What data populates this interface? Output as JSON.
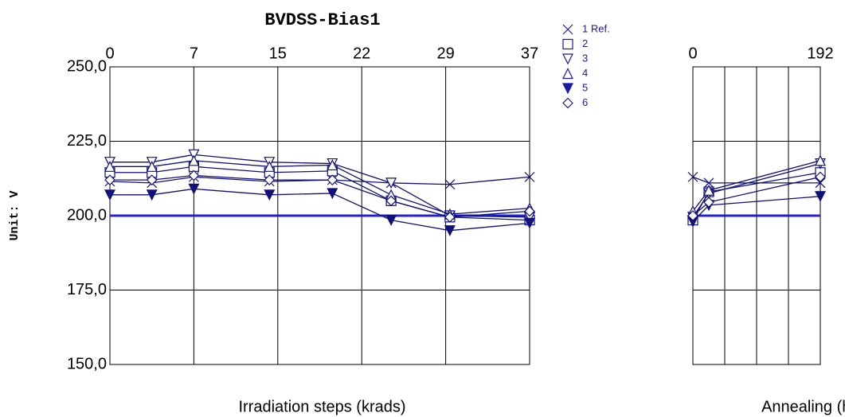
{
  "chart_data": [
    {
      "type": "line",
      "title": "BVDSS-Bias1",
      "y_label": "Unit: V",
      "x_label": "Irradiation steps   (krads)",
      "x": [
        0,
        0.5,
        1,
        1.9,
        2.65,
        3.35,
        4.05,
        5
      ],
      "xlim": [
        0,
        5
      ],
      "xticks": [
        0,
        {
          "value": 1,
          "label": "7"
        },
        {
          "value": 2,
          "label": "15"
        },
        {
          "value": 3,
          "label": "22"
        },
        {
          "value": 4,
          "label": "29"
        },
        {
          "value": 5,
          "label": "37"
        }
      ],
      "ylim": [
        150,
        250
      ],
      "yticks": [
        {
          "value": 150,
          "label": "150,0"
        },
        {
          "value": 175,
          "label": "175,0"
        },
        {
          "value": 200,
          "label": "200,0"
        },
        {
          "value": 225,
          "label": "225,0"
        },
        {
          "value": 250,
          "label": "250,0"
        }
      ],
      "grid": true,
      "limit": 200,
      "limit_color": "#2020d8",
      "line_color": "#10107a",
      "series": [
        {
          "name": "1  Ref.",
          "marker": "x",
          "values": [
            211.5,
            211,
            213,
            211.5,
            212,
            211,
            210.5,
            213
          ]
        },
        {
          "name": "2",
          "marker": "square",
          "values": [
            214.5,
            214.5,
            216.5,
            214.5,
            215,
            205,
            199.5,
            198.5
          ]
        },
        {
          "name": "3",
          "marker": "tri-down",
          "values": [
            218,
            218,
            220.5,
            218,
            217.5,
            211,
            200,
            199.5
          ]
        },
        {
          "name": "4",
          "marker": "tri-up",
          "values": [
            216.5,
            216.5,
            218.5,
            216.5,
            217,
            207,
            200.5,
            202.5
          ]
        },
        {
          "name": "5",
          "marker": "tri-down-filled",
          "values": [
            207,
            207,
            209,
            207,
            207.5,
            198.5,
            195,
            197.5
          ]
        },
        {
          "name": "6",
          "marker": "diamond",
          "values": [
            212,
            212,
            213.5,
            212,
            212,
            205,
            199.5,
            201.5
          ]
        }
      ]
    },
    {
      "type": "line",
      "x_label": "Annealing   (hours)",
      "x": [
        0,
        24,
        192
      ],
      "xlim": [
        0,
        192
      ],
      "xticks": [
        0,
        192
      ],
      "xgrid": [
        48,
        96,
        144
      ],
      "ylim": [
        150,
        250
      ],
      "yticks": [
        150,
        175,
        200,
        225,
        250
      ],
      "grid": true,
      "limit": 200,
      "limit_color": "#2020d8",
      "line_color": "#10107a",
      "series": [
        {
          "marker": "x",
          "values": [
            213,
            211,
            211
          ]
        },
        {
          "marker": "square",
          "values": [
            198.5,
            208,
            214.5
          ]
        },
        {
          "marker": "tri-down",
          "values": [
            199.5,
            207.5,
            217.5
          ]
        },
        {
          "marker": "tri-up",
          "values": [
            201.5,
            208.5,
            218.5
          ]
        },
        {
          "marker": "tri-down-filled",
          "values": [
            198,
            203.5,
            206.5
          ]
        },
        {
          "marker": "diamond",
          "values": [
            200,
            204.5,
            213
          ]
        }
      ]
    }
  ]
}
